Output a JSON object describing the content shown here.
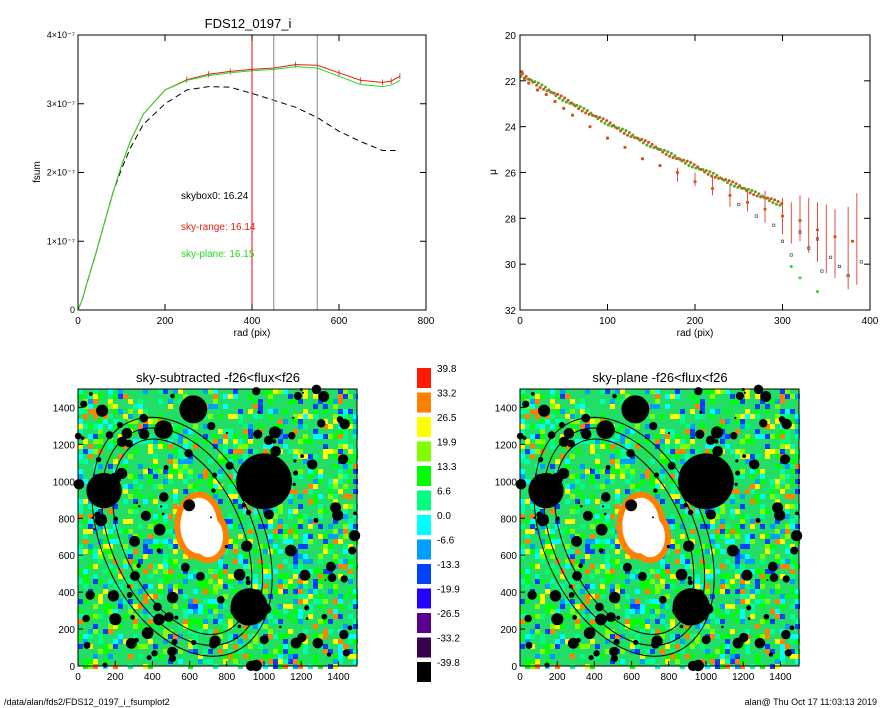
{
  "colors": {
    "raw_curve": "#000000",
    "sky_range": "#e02010",
    "sky_plane": "#22dd22",
    "vline_red": "#ff0000",
    "vline_gray": "#888888"
  },
  "footer": {
    "path": "/data/alan/fds2/FDS12_0197_i_fsumplot2",
    "stamp": "alan@  Thu Oct 17 11:03:13 2019"
  },
  "chart_data": [
    {
      "type": "line",
      "title": "FDS12_0197_i",
      "xlabel": "rad (pix)",
      "ylabel": "fsum",
      "xlim": [
        0,
        800
      ],
      "ylim": [
        0,
        4e-07
      ],
      "x_ticks": [
        "0",
        "200",
        "400",
        "600",
        "800"
      ],
      "y_ticks": [
        "0",
        "1×10⁻⁷",
        "2×10⁻⁷",
        "3×10⁻⁷",
        "4×10⁻⁷"
      ],
      "annotations": [
        {
          "text": "skybox0: 16.24",
          "color": "#000000"
        },
        {
          "text": "sky-range: 16.14",
          "color": "#e02010"
        },
        {
          "text": "sky-plane: 16.15",
          "color": "#22dd22"
        }
      ],
      "vlines": [
        {
          "x": 400,
          "color": "#ff0000"
        },
        {
          "x": 450,
          "color": "#888888"
        },
        {
          "x": 550,
          "color": "#888888"
        }
      ],
      "series": [
        {
          "x": [
            0,
            10,
            20,
            40,
            60,
            80,
            100,
            120,
            150,
            200,
            250,
            300,
            350,
            400,
            450,
            500,
            550,
            600,
            650,
            700,
            730
          ],
          "y": [
            0,
            1.5e-08,
            3.8e-08,
            8e-08,
            1.25e-07,
            1.7e-07,
            2.05e-07,
            2.35e-07,
            2.7e-07,
            3e-07,
            3.2e-07,
            3.25e-07,
            3.24e-07,
            3.15e-07,
            3.05e-07,
            2.95e-07,
            2.8e-07,
            2.6e-07,
            2.45e-07,
            2.32e-07,
            2.32e-07
          ],
          "style": "dashed",
          "color": "#000000"
        },
        {
          "x": [
            0,
            10,
            20,
            40,
            60,
            80,
            100,
            120,
            150,
            200,
            250,
            300,
            350,
            400,
            450,
            500,
            550,
            600,
            650,
            700,
            720,
            740
          ],
          "y": [
            0,
            1.5e-08,
            3.8e-08,
            8e-08,
            1.25e-07,
            1.7e-07,
            2.1e-07,
            2.45e-07,
            2.85e-07,
            3.2e-07,
            3.35e-07,
            3.43e-07,
            3.47e-07,
            3.5e-07,
            3.52e-07,
            3.57e-07,
            3.56e-07,
            3.45e-07,
            3.34e-07,
            3.31e-07,
            3.33e-07,
            3.4e-07
          ],
          "color": "#e02010"
        },
        {
          "x": [
            0,
            10,
            20,
            40,
            60,
            80,
            100,
            120,
            150,
            200,
            250,
            300,
            350,
            400,
            450,
            500,
            550,
            600,
            650,
            700,
            720,
            740
          ],
          "y": [
            0,
            1.5e-08,
            3.8e-08,
            8e-08,
            1.25e-07,
            1.7e-07,
            2.1e-07,
            2.45e-07,
            2.85e-07,
            3.2e-07,
            3.34e-07,
            3.41e-07,
            3.45e-07,
            3.48e-07,
            3.5e-07,
            3.54e-07,
            3.52e-07,
            3.4e-07,
            3.28e-07,
            3.25e-07,
            3.27e-07,
            3.34e-07
          ],
          "color": "#22dd22"
        }
      ]
    },
    {
      "type": "scatter",
      "xlabel": "rad (pix)",
      "ylabel": "μ",
      "xlim": [
        0,
        400
      ],
      "ylim": [
        32,
        20
      ],
      "x_ticks": [
        "0",
        "100",
        "200",
        "300",
        "400"
      ],
      "y_ticks": [
        "20",
        "22",
        "24",
        "26",
        "28",
        "30",
        "32"
      ],
      "profile_points": [
        [
          2,
          21.6
        ],
        [
          5,
          21.9
        ],
        [
          10,
          22.1
        ],
        [
          20,
          22.4
        ],
        [
          30,
          22.6
        ],
        [
          40,
          22.9
        ],
        [
          50,
          23.2
        ],
        [
          60,
          23.5
        ],
        [
          80,
          24.0
        ],
        [
          100,
          24.5
        ],
        [
          120,
          24.9
        ],
        [
          140,
          25.4
        ],
        [
          160,
          25.7
        ],
        [
          180,
          26.0
        ],
        [
          200,
          26.4
        ],
        [
          220,
          26.7
        ],
        [
          240,
          27.0
        ],
        [
          260,
          27.3
        ],
        [
          280,
          27.6
        ],
        [
          300,
          27.9
        ],
        [
          320,
          28.1
        ],
        [
          340,
          28.5
        ],
        [
          360,
          28.8
        ],
        [
          380,
          29.0
        ]
      ],
      "errorbar_points": [
        [
          180,
          26.1,
          0.3
        ],
        [
          200,
          26.3,
          0.3
        ],
        [
          220,
          26.6,
          0.4
        ],
        [
          240,
          27.0,
          0.5
        ],
        [
          260,
          27.2,
          0.5
        ],
        [
          280,
          27.5,
          0.7
        ],
        [
          300,
          27.9,
          0.8
        ],
        [
          310,
          28.2,
          0.9
        ],
        [
          320,
          28.0,
          1.0
        ],
        [
          330,
          28.3,
          1.2
        ],
        [
          340,
          28.6,
          1.3
        ],
        [
          350,
          28.9,
          1.5
        ],
        [
          360,
          29.1,
          1.5
        ],
        [
          375,
          29.3,
          1.8
        ],
        [
          385,
          28.9,
          2.0
        ]
      ],
      "raw_points": [
        [
          250,
          27.4
        ],
        [
          270,
          27.9
        ],
        [
          290,
          28.3
        ],
        [
          300,
          29.0
        ],
        [
          310,
          29.6
        ],
        [
          320,
          28.6
        ],
        [
          330,
          29.3
        ],
        [
          340,
          28.9
        ],
        [
          345,
          30.3
        ],
        [
          355,
          29.7
        ],
        [
          365,
          30.1
        ],
        [
          375,
          30.5
        ],
        [
          390,
          29.9
        ]
      ],
      "plane_points": [
        [
          310,
          30.1
        ],
        [
          320,
          30.6
        ],
        [
          340,
          31.2
        ]
      ]
    },
    {
      "type": "heatmap",
      "title": "sky-subtracted -f26<flux<f26",
      "xlim": [
        0,
        1500
      ],
      "ylim": [
        0,
        1500
      ],
      "x_ticks": [
        "0",
        "200",
        "400",
        "600",
        "800",
        "1000",
        "1200",
        "1400"
      ],
      "y_ticks": [
        "0",
        "200",
        "400",
        "600",
        "800",
        "1000",
        "1200",
        "1400"
      ]
    },
    {
      "type": "heatmap",
      "title": "sky-plane -f26<flux<f26",
      "xlim": [
        0,
        1500
      ],
      "ylim": [
        0,
        1500
      ],
      "x_ticks": [
        "0",
        "200",
        "400",
        "600",
        "800",
        "1000",
        "1200",
        "1400"
      ],
      "y_ticks": [
        "0",
        "200",
        "400",
        "600",
        "800",
        "1000",
        "1200",
        "1400"
      ]
    }
  ],
  "colorbar": {
    "labels": [
      "39.8",
      "33.2",
      "26.5",
      "19.9",
      "13.3",
      "6.6",
      "0.0",
      "-6.6",
      "-13.3",
      "-19.9",
      "-26.5",
      "-33.2",
      "-39.8"
    ],
    "colors": [
      "#ff1a00",
      "#ff7f00",
      "#ffff00",
      "#7fff00",
      "#00ff00",
      "#00ff7f",
      "#00ffff",
      "#009fff",
      "#0040ff",
      "#2000ff",
      "#5a008f",
      "#3a0050",
      "#000000"
    ]
  },
  "masks": {
    "big_disks": [
      [
        140,
        950,
        95
      ],
      [
        620,
        1390,
        75
      ],
      [
        1000,
        1000,
        150
      ],
      [
        920,
        320,
        100
      ],
      [
        460,
        1280,
        50
      ]
    ],
    "white_blob": [
      [
        650,
        760,
        100,
        150
      ],
      [
        700,
        700,
        80,
        110
      ]
    ]
  }
}
